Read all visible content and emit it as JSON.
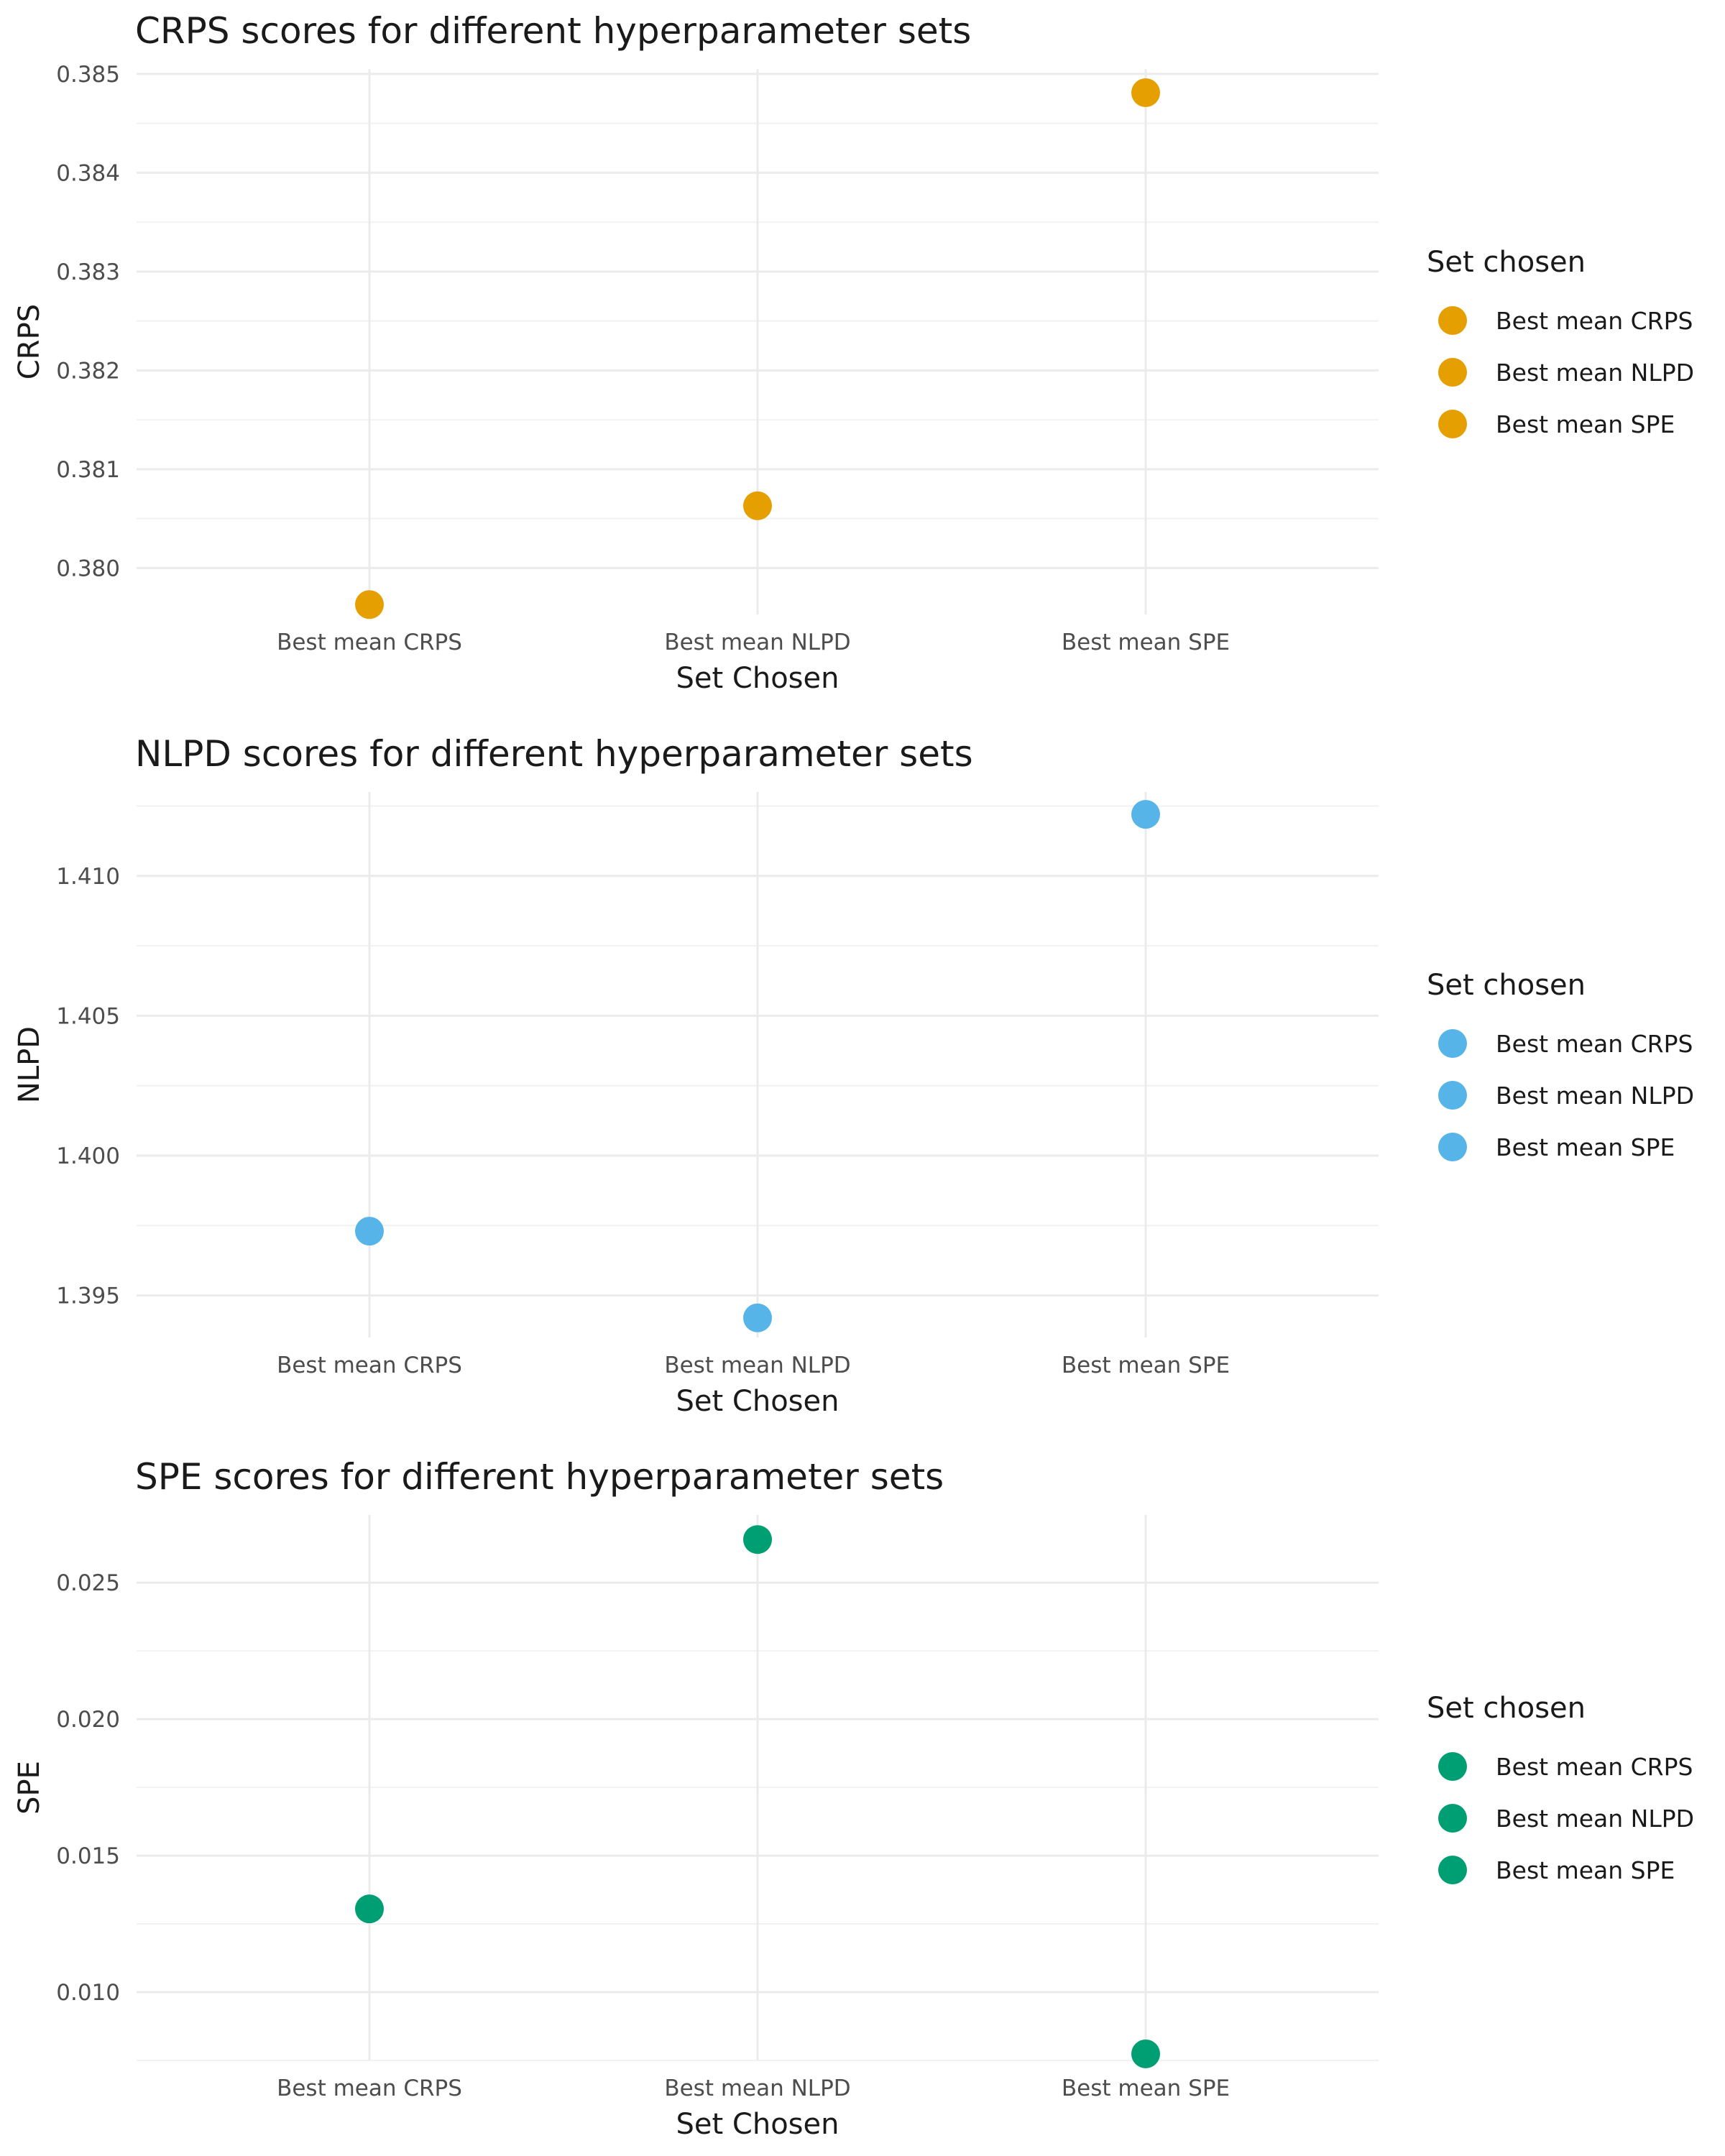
{
  "chart_data": [
    {
      "type": "scatter",
      "title": "CRPS scores for different hyperparameter sets",
      "xlabel": "Set Chosen",
      "ylabel": "CRPS",
      "categories": [
        "Best mean CRPS",
        "Best mean NLPD",
        "Best mean SPE"
      ],
      "values": [
        0.37963,
        0.38063,
        0.38481
      ],
      "ylim": [
        0.37953,
        0.38505
      ],
      "yticks": [
        "0.380",
        "0.381",
        "0.382",
        "0.383",
        "0.384",
        "0.385"
      ],
      "ytick_values": [
        0.38,
        0.381,
        0.382,
        0.383,
        0.384,
        0.385
      ],
      "color": "#E69F00",
      "grid": true,
      "legend": {
        "title": "Set chosen",
        "position": "right",
        "entries": [
          "Best mean CRPS",
          "Best mean NLPD",
          "Best mean SPE"
        ]
      }
    },
    {
      "type": "scatter",
      "title": "NLPD scores for different hyperparameter sets",
      "xlabel": "Set Chosen",
      "ylabel": "NLPD",
      "categories": [
        "Best mean CRPS",
        "Best mean NLPD",
        "Best mean SPE"
      ],
      "values": [
        1.3973,
        1.3942,
        1.4122
      ],
      "ylim": [
        1.3935,
        1.413
      ],
      "yticks": [
        "1.395",
        "1.400",
        "1.405",
        "1.410"
      ],
      "ytick_values": [
        1.395,
        1.4,
        1.405,
        1.41
      ],
      "color": "#56B4E9",
      "grid": true,
      "legend": {
        "title": "Set chosen",
        "position": "right",
        "entries": [
          "Best mean CRPS",
          "Best mean NLPD",
          "Best mean SPE"
        ]
      }
    },
    {
      "type": "scatter",
      "title": "SPE scores for different hyperparameter sets",
      "xlabel": "Set Chosen",
      "ylabel": "SPE",
      "categories": [
        "Best mean CRPS",
        "Best mean NLPD",
        "Best mean SPE"
      ],
      "values": [
        0.01305,
        0.02658,
        0.00774
      ],
      "ylim": [
        0.0075,
        0.02748
      ],
      "yticks": [
        "0.010",
        "0.015",
        "0.020",
        "0.025"
      ],
      "ytick_values": [
        0.01,
        0.015,
        0.02,
        0.025
      ],
      "color": "#009E73",
      "grid": true,
      "legend": {
        "title": "Set chosen",
        "position": "right",
        "entries": [
          "Best mean CRPS",
          "Best mean NLPD",
          "Best mean SPE"
        ]
      }
    }
  ]
}
